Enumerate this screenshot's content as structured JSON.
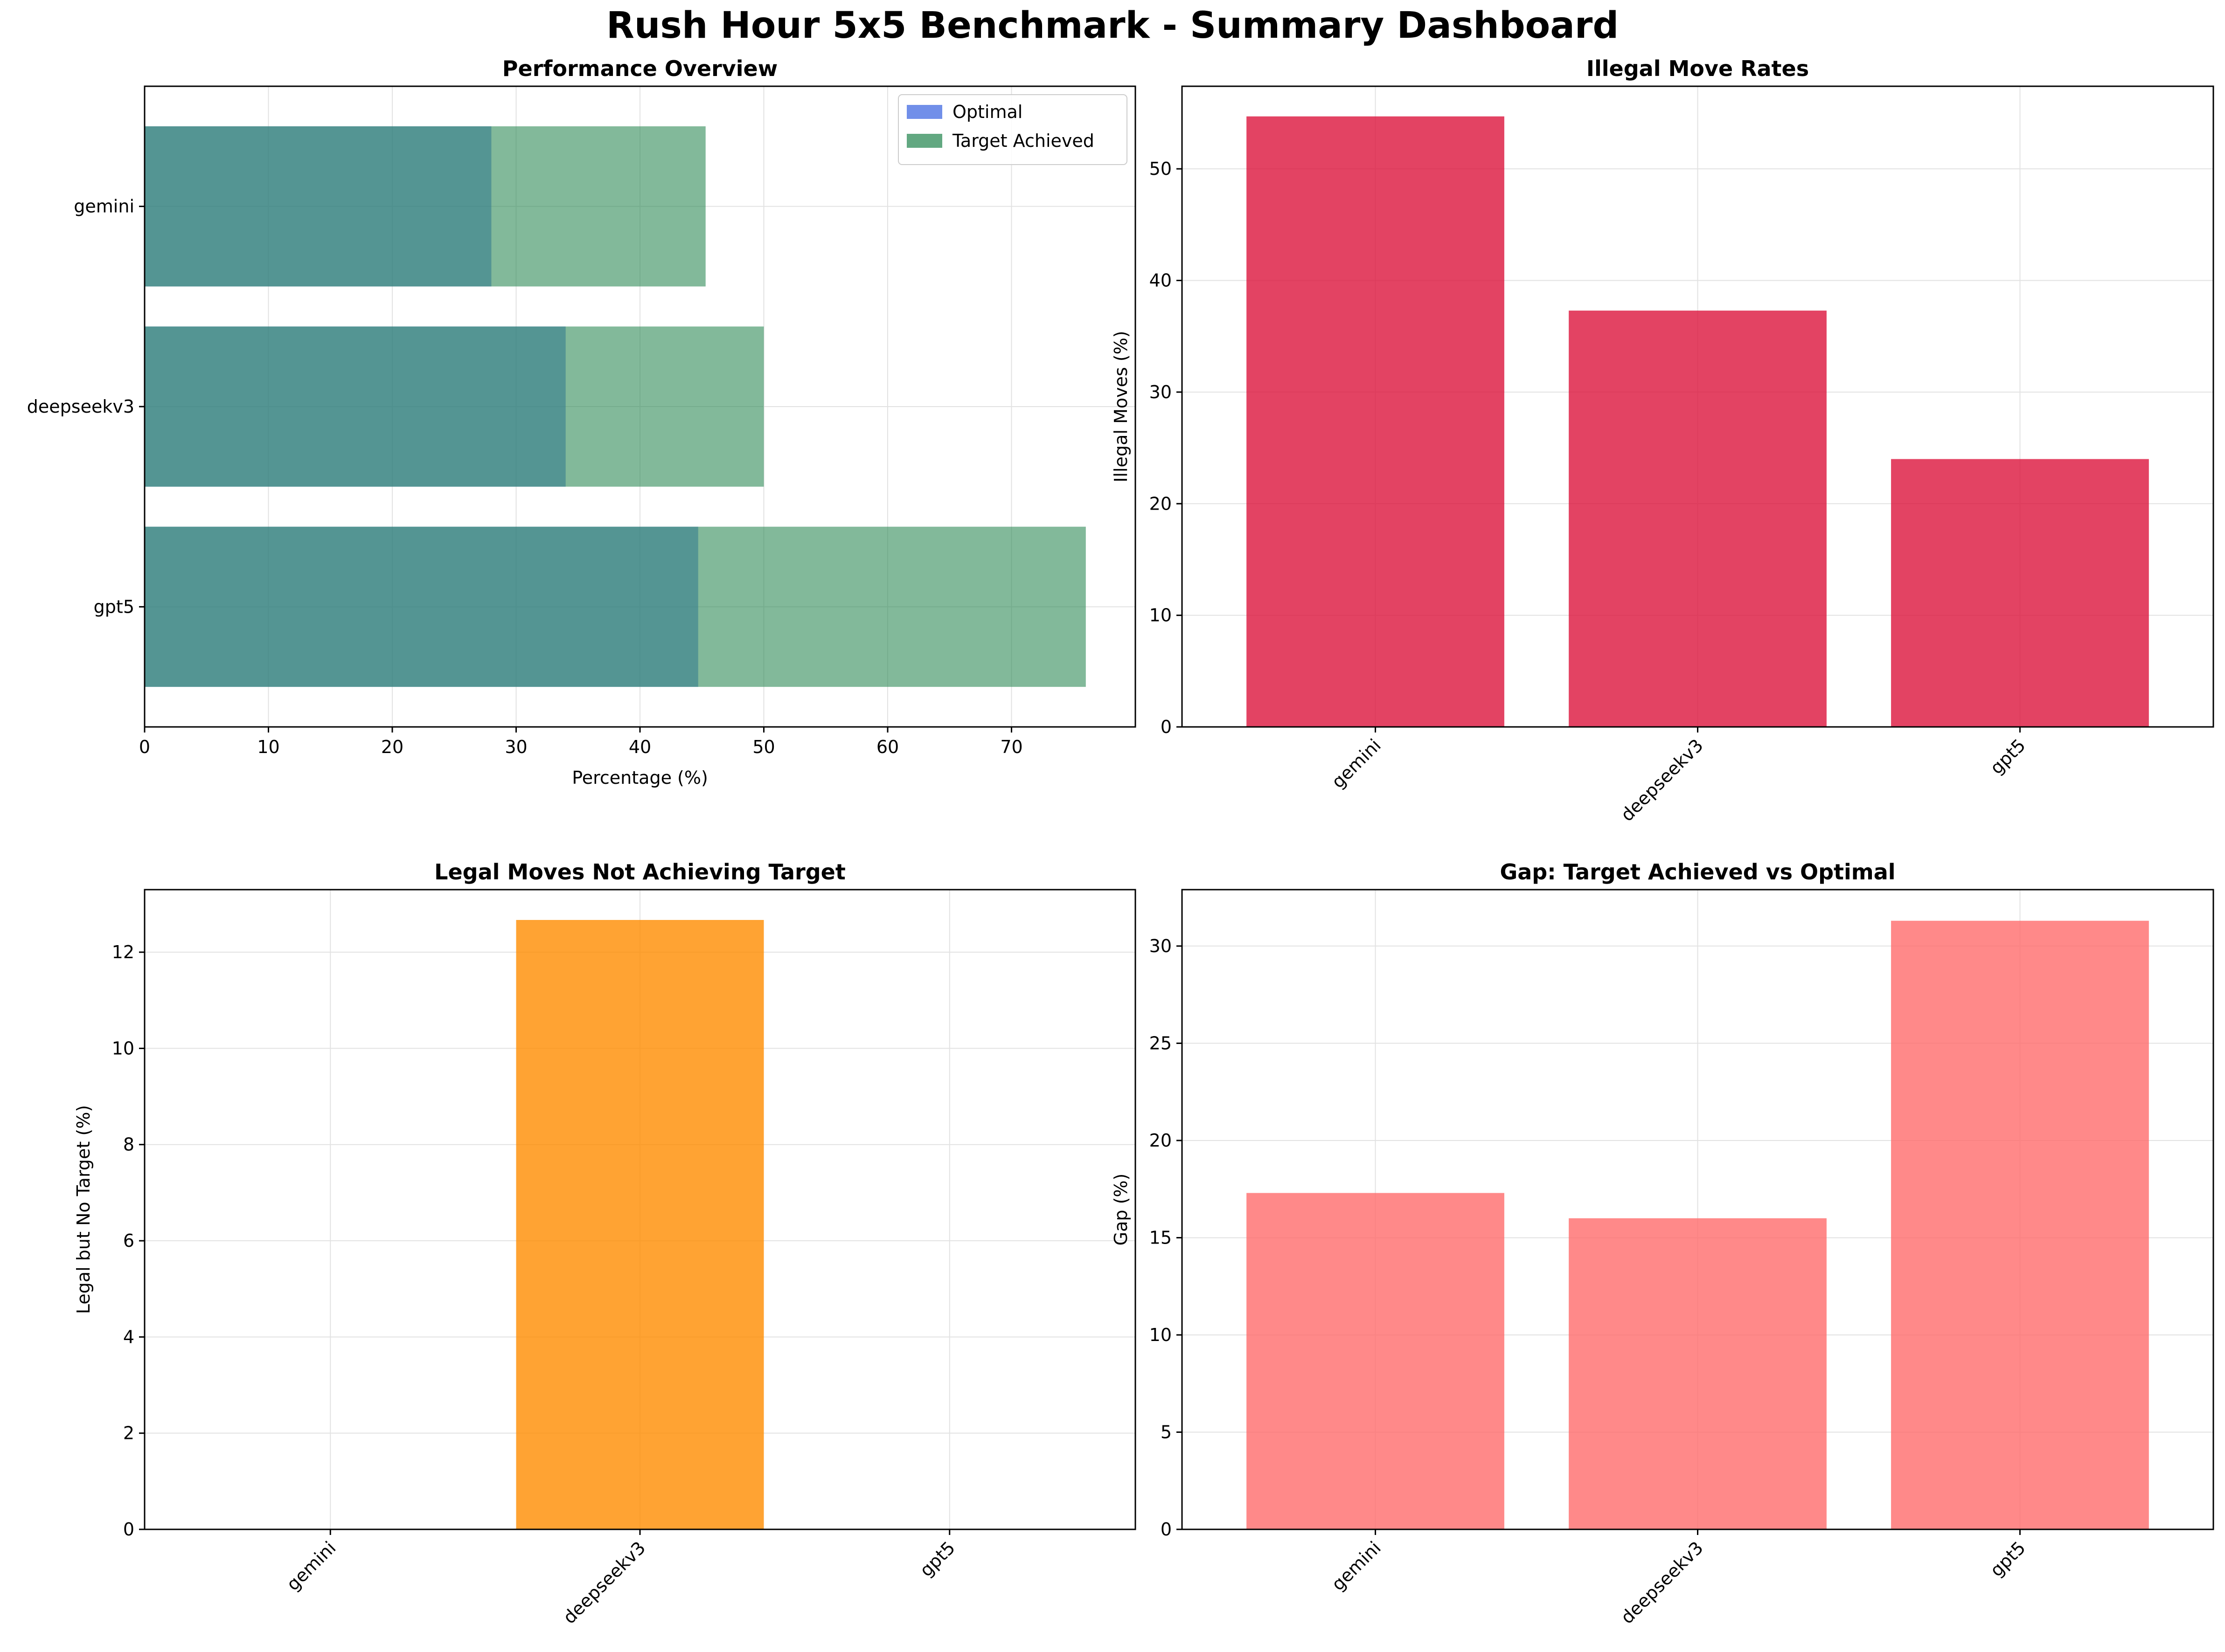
{
  "title": "Rush Hour 5x5 Benchmark - Summary Dashboard",
  "chart_data": [
    {
      "id": "performance",
      "type": "bar",
      "orientation": "horizontal",
      "title": "Performance Overview",
      "xlabel": "Percentage (%)",
      "ylabel": "",
      "categories": [
        "gemini",
        "deepseekv3",
        "gpt5"
      ],
      "series": [
        {
          "name": "Optimal",
          "values": [
            28.0,
            34.0,
            44.7
          ],
          "color": "#4169e1"
        },
        {
          "name": "Target Achieved",
          "values": [
            45.3,
            50.0,
            76.0
          ],
          "color": "#2e8b57"
        }
      ],
      "xlim": [
        0,
        80
      ],
      "xticks": [
        0,
        10,
        20,
        30,
        40,
        50,
        60,
        70
      ],
      "legend": "top-right",
      "grid": true
    },
    {
      "id": "illegal",
      "type": "bar",
      "title": "Illegal Move Rates",
      "xlabel": "",
      "ylabel": "Illegal Moves (%)",
      "categories": [
        "gemini",
        "deepseekv3",
        "gpt5"
      ],
      "values": [
        54.7,
        37.3,
        24.0
      ],
      "color": "#dc143c",
      "ylim": [
        0,
        57.4
      ],
      "yticks": [
        0,
        10,
        20,
        30,
        40,
        50
      ],
      "grid": true
    },
    {
      "id": "legal_no_target",
      "type": "bar",
      "title": "Legal Moves Not Achieving Target",
      "xlabel": "",
      "ylabel": "Legal but No Target (%)",
      "categories": [
        "gemini",
        "deepseekv3",
        "gpt5"
      ],
      "values": [
        0.0,
        12.67,
        0.0
      ],
      "color": "#ff8c00",
      "ylim": [
        0,
        13.3
      ],
      "yticks": [
        0,
        2,
        4,
        6,
        8,
        10,
        12
      ],
      "grid": true
    },
    {
      "id": "gap",
      "type": "bar",
      "title": "Gap: Target Achieved vs Optimal",
      "xlabel": "",
      "ylabel": "Gap (%)",
      "categories": [
        "gemini",
        "deepseekv3",
        "gpt5"
      ],
      "values": [
        17.3,
        16.0,
        31.3
      ],
      "color": "#ff6b6b",
      "ylim": [
        0,
        32.9
      ],
      "yticks": [
        0,
        5,
        10,
        15,
        20,
        25,
        30
      ],
      "grid": true
    }
  ]
}
